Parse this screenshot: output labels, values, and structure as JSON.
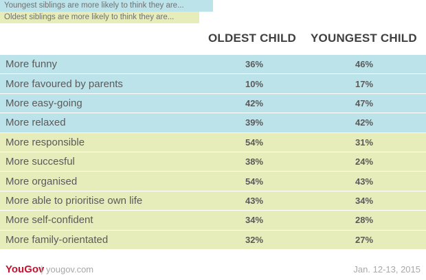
{
  "legend": {
    "youngest": {
      "label": "Youngest siblings are more likely to think they are...",
      "color": "#bde3ea"
    },
    "oldest": {
      "label": "Oldest siblings are more likely to think they are...",
      "color": "#e6edbb"
    }
  },
  "chart_data": {
    "type": "table",
    "columns": [
      "OLDEST CHILD",
      "YOUNGEST CHILD"
    ],
    "rows": [
      {
        "label": "More funny",
        "oldest": "36%",
        "youngest": "46%",
        "group": "youngest"
      },
      {
        "label": "More favoured by parents",
        "oldest": "10%",
        "youngest": "17%",
        "group": "youngest"
      },
      {
        "label": "More easy-going",
        "oldest": "42%",
        "youngest": "47%",
        "group": "youngest"
      },
      {
        "label": "More relaxed",
        "oldest": "39%",
        "youngest": "42%",
        "group": "youngest"
      },
      {
        "label": "More responsible",
        "oldest": "54%",
        "youngest": "31%",
        "group": "oldest"
      },
      {
        "label": "More succesful",
        "oldest": "38%",
        "youngest": "24%",
        "group": "oldest"
      },
      {
        "label": "More organised",
        "oldest": "54%",
        "youngest": "43%",
        "group": "oldest"
      },
      {
        "label": "More able to prioritise own life",
        "oldest": "43%",
        "youngest": "34%",
        "group": "oldest"
      },
      {
        "label": "More self-confident",
        "oldest": "34%",
        "youngest": "28%",
        "group": "oldest"
      },
      {
        "label": "More family-orientated",
        "oldest": "32%",
        "youngest": "27%",
        "group": "oldest"
      }
    ]
  },
  "footer": {
    "brand": "YouGov",
    "separator": "|",
    "site": "yougov.com",
    "date": "Jan. 12-13, 2015"
  }
}
